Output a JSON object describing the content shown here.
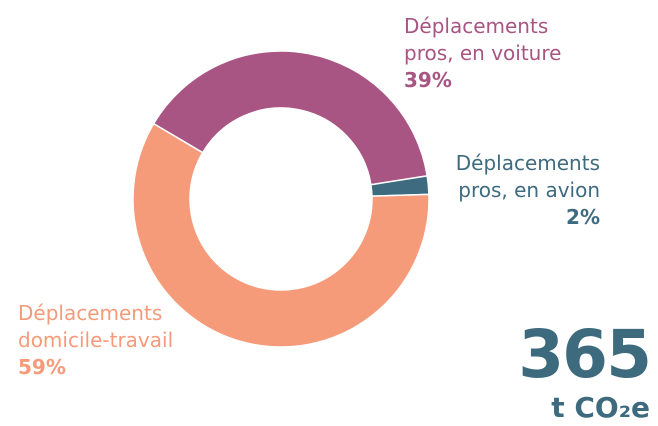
{
  "chart_data": {
    "type": "donut",
    "categories": [
      "Déplacements pros, en voiture",
      "Déplacements pros, en avion",
      "Déplacements domicile-travail"
    ],
    "values": [
      39,
      2,
      59
    ],
    "value_labels": [
      "39%",
      "2%",
      "59%"
    ],
    "colors": [
      "#a85584",
      "#3f6b80",
      "#f59b7a"
    ],
    "total": "365",
    "total_unit": "t CO₂e"
  }
}
